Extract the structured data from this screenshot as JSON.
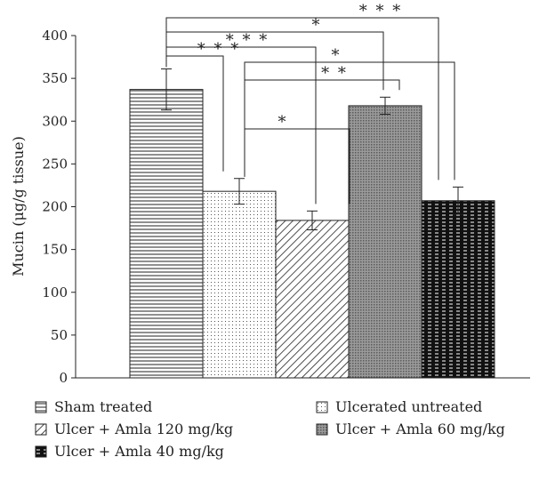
{
  "chart_data": {
    "type": "bar",
    "ylabel": "Mucin (μg/g tissue)",
    "ylim": [
      0,
      400
    ],
    "yticks": [
      0,
      50,
      100,
      150,
      200,
      250,
      300,
      350,
      400
    ],
    "grid": false,
    "legend_position": "bottom",
    "bars": [
      {
        "name": "Sham treated",
        "value": 337,
        "error": 24,
        "pattern": "horizontal-lines"
      },
      {
        "name": "Ulcerated untreated",
        "value": 218,
        "error": 15,
        "pattern": "dots"
      },
      {
        "name": "Ulcer + Amla 120 mg/kg",
        "value": 184,
        "error": 11,
        "pattern": "diagonal-lines"
      },
      {
        "name": "Ulcer + Amla 60 mg/kg",
        "value": 318,
        "error": 10,
        "pattern": "dense-dots"
      },
      {
        "name": "Ulcer + Amla 40 mg/kg",
        "value": 207,
        "error": 16,
        "pattern": "dark-dashes"
      }
    ],
    "significance": [
      {
        "from": 0,
        "to": 4,
        "label": "* * *"
      },
      {
        "from": 0,
        "to": 3,
        "label": "*"
      },
      {
        "from": 0,
        "to": 2,
        "label": "* * *"
      },
      {
        "from": 0,
        "to": 1,
        "label": "* * *"
      },
      {
        "from": 1,
        "to": 4,
        "label": "*"
      },
      {
        "from": 1,
        "to": 3,
        "label": "* *"
      },
      {
        "from": 1,
        "to": 2,
        "label": "*"
      }
    ],
    "legend": [
      "Sham treated",
      "Ulcerated untreated",
      "Ulcer + Amla 120 mg/kg",
      "Ulcer + Amla 60 mg/kg",
      "Ulcer + Amla 40 mg/kg"
    ]
  }
}
